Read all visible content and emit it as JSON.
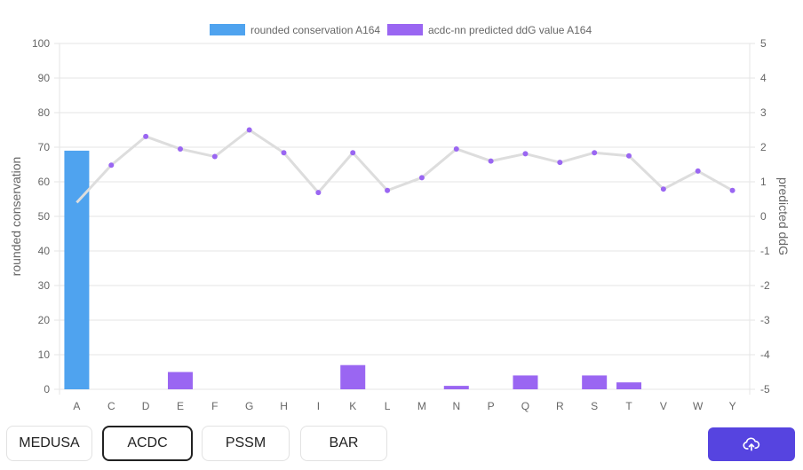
{
  "chart_data": {
    "type": "bar+line",
    "categories": [
      "A",
      "C",
      "D",
      "E",
      "F",
      "G",
      "H",
      "I",
      "K",
      "L",
      "M",
      "N",
      "P",
      "Q",
      "R",
      "S",
      "T",
      "V",
      "W",
      "Y"
    ],
    "series": [
      {
        "name": "rounded conservation A164",
        "type": "bar",
        "axis": "left",
        "color": "#4fa3ef",
        "values": [
          69,
          0,
          0,
          0,
          0,
          0,
          0,
          0,
          0,
          0,
          0,
          0,
          0,
          0,
          0,
          0,
          0,
          0,
          0,
          0
        ]
      },
      {
        "name": "acdc-nn predicted ddG value A164",
        "type": "bar",
        "axis": "left",
        "color": "#9a66f2",
        "values": [
          0,
          0,
          0,
          5,
          0,
          0,
          0,
          0,
          7,
          0,
          0,
          1,
          0,
          4,
          0,
          4,
          2,
          0,
          0,
          0
        ]
      },
      {
        "type": "line",
        "axis": "right",
        "line_color": "#dddddd",
        "point_color": "#9a66f2",
        "values": [
          0.4,
          1.48,
          2.31,
          1.95,
          1.73,
          2.5,
          1.84,
          0.69,
          1.84,
          0.75,
          1.12,
          1.95,
          1.6,
          1.81,
          1.56,
          1.84,
          1.75,
          0.79,
          1.31,
          0.75
        ]
      }
    ],
    "ylabel": "rounded conservation",
    "y2label": "predicted ddG",
    "ylim": [
      0,
      100
    ],
    "y2lim": [
      -5,
      5
    ],
    "yticks": [
      "0",
      "10",
      "20",
      "30",
      "40",
      "50",
      "60",
      "70",
      "80",
      "90",
      "100"
    ],
    "y2ticks": [
      "-5",
      "-4",
      "-3",
      "-2",
      "-1",
      "0",
      "1",
      "2",
      "3",
      "4",
      "5"
    ],
    "grid": true,
    "legend": "top-center"
  },
  "buttons": {
    "medusa": "MEDUSA",
    "acdc": "ACDC",
    "pssm": "PSSM",
    "bar": "BAR",
    "upload_icon": "cloud-upload-icon"
  }
}
